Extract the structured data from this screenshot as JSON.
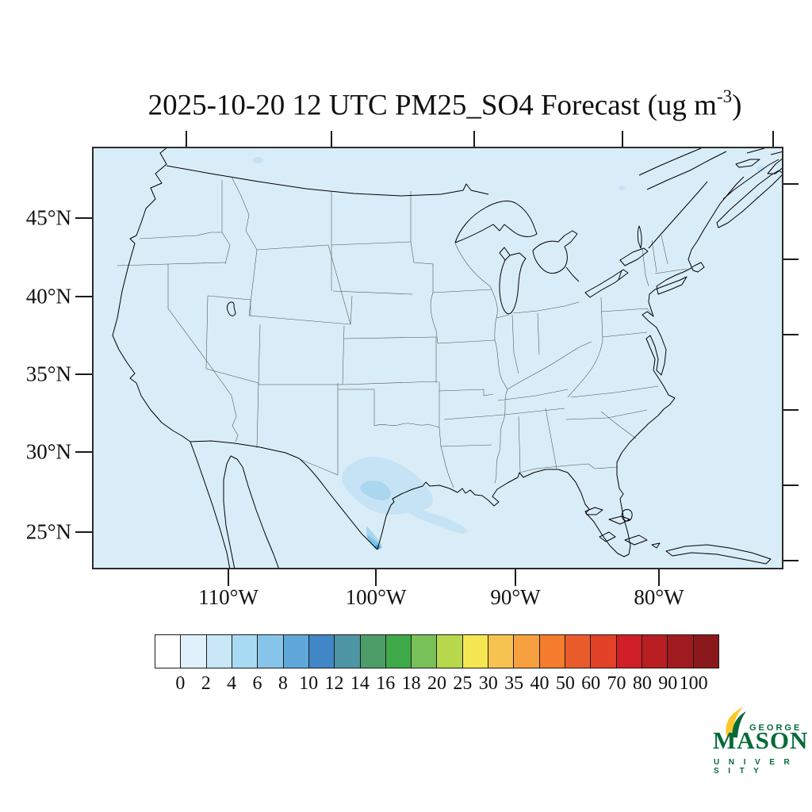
{
  "title": {
    "text_prefix": "2025-10-20 12 UTC PM25_SO4 Forecast (ug m",
    "exponent": "-3",
    "text_suffix": ")"
  },
  "map": {
    "background_color": "#d9edf8",
    "lat_labels": [
      "45°N",
      "40°N",
      "35°N",
      "30°N",
      "25°N"
    ],
    "lon_labels": [
      "110°W",
      "100°W",
      "90°W",
      "80°W"
    ]
  },
  "colorbar": {
    "tick_labels": [
      "0",
      "2",
      "4",
      "6",
      "8",
      "10",
      "12",
      "14",
      "16",
      "18",
      "20",
      "25",
      "30",
      "35",
      "40",
      "50",
      "60",
      "70",
      "80",
      "90",
      "100"
    ],
    "cell_colors": [
      "#ffffff",
      "#e0f1fb",
      "#c9e7f7",
      "#a9daf3",
      "#86c5e9",
      "#60a8da",
      "#4187c8",
      "#4e96a4",
      "#4d9d68",
      "#3fa947",
      "#78c058",
      "#b7d74d",
      "#f5e751",
      "#f7c350",
      "#f7a03f",
      "#f57b2d",
      "#ea5b2b",
      "#e04127",
      "#d01f26",
      "#b81e22",
      "#a01b1f",
      "#8b191b"
    ]
  },
  "logo": {
    "george": "GEORGE",
    "mason": "MASON",
    "university": "U N I V E R S I T Y",
    "green": "#046a38",
    "gold": "#ffc72e"
  },
  "chart_data": {
    "type": "map",
    "title": "2025-10-20 12 UTC PM25_SO4 Forecast (ug m-3)",
    "region": "Continental United States with portions of Canada, Mexico, Gulf of Mexico and western Atlantic",
    "x_axis_ticks_deg_west": [
      110,
      100,
      90,
      80
    ],
    "y_axis_ticks_deg_north": [
      45,
      40,
      35,
      30,
      25
    ],
    "colorbar_levels": [
      0,
      2,
      4,
      6,
      8,
      10,
      12,
      14,
      16,
      18,
      20,
      25,
      30,
      35,
      40,
      50,
      60,
      70,
      80,
      90,
      100
    ],
    "colorbar_units": "ug m-3",
    "field_summary": "Background concentrations below 2 ug m-3 everywhere; a localized sulfate plume of roughly 2-10 ug m-3 over southern Texas and northeastern Mexico near the lower Rio Grande, with a small darker core near the coast; a few faint 2-4 ug m-3 specks over southern Canada and near Nova Scotia"
  }
}
